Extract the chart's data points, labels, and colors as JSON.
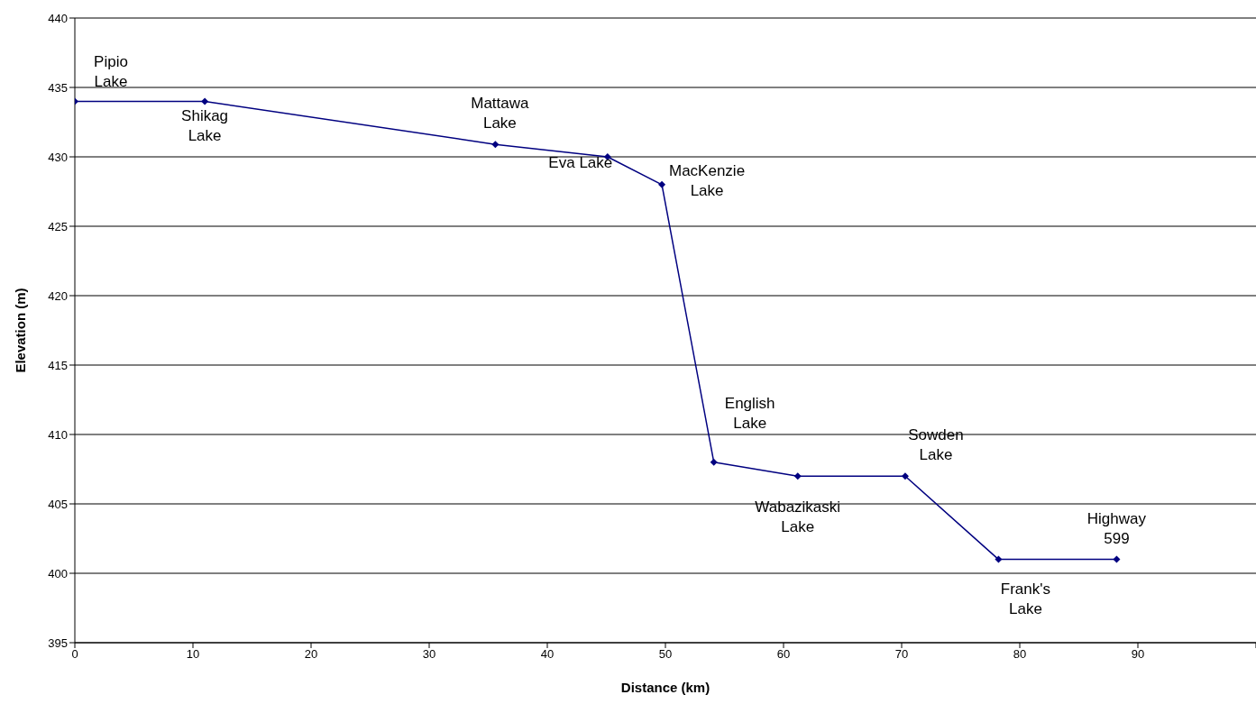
{
  "chart_data": {
    "type": "line",
    "xlabel": "Distance (km)",
    "ylabel": "Elevation (m)",
    "x": [
      0,
      11,
      35.6,
      45.1,
      49.7,
      54.1,
      61.2,
      70.3,
      78.2,
      88.2
    ],
    "series": [
      {
        "color": "#000080",
        "values": [
          434,
          434,
          430.9,
          430,
          428,
          408,
          407,
          407,
          401,
          401
        ]
      }
    ],
    "xlim": [
      0,
      100
    ],
    "xticks": [
      0,
      10,
      20,
      30,
      40,
      50,
      60,
      70,
      80,
      90,
      {
        "value": 100,
        "label": null
      }
    ],
    "ylim": [
      395,
      440
    ],
    "yticks": [
      395,
      400,
      405,
      410,
      415,
      420,
      425,
      430,
      435,
      440
    ],
    "grid": "y",
    "marker": "diamond",
    "line_style": "solid",
    "legend": false,
    "annotations": [
      {
        "text": "Pipio Lake",
        "x": 0,
        "y": 434
      },
      {
        "text": "Shikag Lake",
        "x": 11,
        "y": 434
      },
      {
        "text": "Mattawa Lake",
        "x": 35.6,
        "y": 430.9
      },
      {
        "text": "Eva Lake",
        "x": 45.1,
        "y": 430
      },
      {
        "text": "MacKenzie Lake",
        "x": 49.7,
        "y": 428
      },
      {
        "text": "English Lake",
        "x": 54.1,
        "y": 408
      },
      {
        "text": "Wabazikaski Lake",
        "x": 61.2,
        "y": 407
      },
      {
        "text": "Sowden Lake",
        "x": 70.3,
        "y": 407
      },
      {
        "text": "Frank's Lake",
        "x": 78.2,
        "y": 401
      },
      {
        "text": "Highway 599",
        "x": 88.2,
        "y": 401
      }
    ]
  }
}
